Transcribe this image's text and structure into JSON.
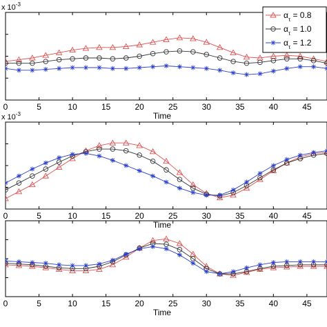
{
  "chart_data": [
    {
      "type": "line",
      "title": "",
      "xlabel": "Time",
      "ylabel": "",
      "y_exponent": "x 10",
      "y_exponent_power": "-3",
      "xlim": [
        0,
        48
      ],
      "ylim": [
        0,
        1
      ],
      "xticks": [
        0,
        5,
        10,
        15,
        20,
        25,
        30,
        35,
        40,
        45
      ],
      "grid": false,
      "legend": "top-right",
      "series": [
        {
          "name": "α = 0.8",
          "name_subscript": "τ",
          "color": "#e05050",
          "marker": "triangle",
          "x": [
            0,
            2,
            4,
            6,
            8,
            10,
            12,
            14,
            16,
            18,
            20,
            22,
            24,
            26,
            28,
            30,
            32,
            34,
            36,
            38,
            40,
            42,
            44,
            46,
            48
          ],
          "y": [
            0.44,
            0.46,
            0.48,
            0.51,
            0.54,
            0.57,
            0.59,
            0.6,
            0.6,
            0.61,
            0.63,
            0.66,
            0.69,
            0.71,
            0.7,
            0.66,
            0.6,
            0.54,
            0.49,
            0.48,
            0.5,
            0.51,
            0.5,
            0.47,
            0.44
          ]
        },
        {
          "name": "α = 1.0",
          "name_subscript": "τ",
          "color": "#333333",
          "marker": "circle",
          "x": [
            0,
            2,
            4,
            6,
            8,
            10,
            12,
            14,
            16,
            18,
            20,
            22,
            24,
            26,
            28,
            30,
            32,
            34,
            36,
            38,
            40,
            42,
            44,
            46,
            48
          ],
          "y": [
            0.42,
            0.42,
            0.42,
            0.44,
            0.46,
            0.47,
            0.48,
            0.48,
            0.47,
            0.48,
            0.5,
            0.53,
            0.55,
            0.56,
            0.55,
            0.52,
            0.48,
            0.44,
            0.42,
            0.43,
            0.45,
            0.47,
            0.47,
            0.45,
            0.42
          ]
        },
        {
          "name": "α = 1.2",
          "name_subscript": "τ",
          "color": "#2a3fcf",
          "marker": "star",
          "x": [
            0,
            2,
            4,
            6,
            8,
            10,
            12,
            14,
            16,
            18,
            20,
            22,
            24,
            26,
            28,
            30,
            32,
            34,
            36,
            38,
            40,
            42,
            44,
            46,
            48
          ],
          "y": [
            0.36,
            0.34,
            0.34,
            0.35,
            0.36,
            0.37,
            0.37,
            0.37,
            0.36,
            0.36,
            0.37,
            0.38,
            0.39,
            0.38,
            0.37,
            0.36,
            0.34,
            0.31,
            0.29,
            0.3,
            0.33,
            0.36,
            0.38,
            0.38,
            0.36
          ]
        }
      ]
    },
    {
      "type": "line",
      "title": "",
      "xlabel": "Time",
      "ylabel": "",
      "y_exponent": "x 10",
      "y_exponent_power": "-3",
      "xlim": [
        0,
        48
      ],
      "ylim": [
        0,
        1
      ],
      "xticks": [
        0,
        5,
        10,
        15,
        20,
        25,
        30,
        35,
        40,
        45
      ],
      "grid": false,
      "legend": "none",
      "series": [
        {
          "name": "α = 0.8",
          "color": "#e05050",
          "marker": "triangle",
          "x": [
            0,
            2,
            4,
            6,
            8,
            10,
            12,
            14,
            16,
            18,
            20,
            22,
            24,
            26,
            28,
            30,
            32,
            34,
            36,
            38,
            40,
            42,
            44,
            46,
            48
          ],
          "y": [
            0.12,
            0.2,
            0.28,
            0.38,
            0.48,
            0.58,
            0.67,
            0.73,
            0.76,
            0.76,
            0.73,
            0.66,
            0.55,
            0.42,
            0.28,
            0.18,
            0.13,
            0.16,
            0.24,
            0.34,
            0.44,
            0.53,
            0.6,
            0.64,
            0.65
          ]
        },
        {
          "name": "α = 1.0",
          "color": "#333333",
          "marker": "circle",
          "x": [
            0,
            2,
            4,
            6,
            8,
            10,
            12,
            14,
            16,
            18,
            20,
            22,
            24,
            26,
            28,
            30,
            32,
            34,
            36,
            38,
            40,
            42,
            44,
            46,
            48
          ],
          "y": [
            0.22,
            0.3,
            0.38,
            0.46,
            0.54,
            0.61,
            0.66,
            0.69,
            0.69,
            0.67,
            0.62,
            0.55,
            0.45,
            0.34,
            0.24,
            0.17,
            0.15,
            0.19,
            0.27,
            0.36,
            0.45,
            0.53,
            0.58,
            0.62,
            0.64
          ]
        },
        {
          "name": "α = 1.2",
          "color": "#2a3fcf",
          "marker": "star",
          "x": [
            0,
            2,
            4,
            6,
            8,
            10,
            12,
            14,
            16,
            18,
            20,
            22,
            24,
            26,
            28,
            30,
            32,
            34,
            36,
            38,
            40,
            42,
            44,
            46,
            48
          ],
          "y": [
            0.3,
            0.38,
            0.46,
            0.53,
            0.59,
            0.63,
            0.64,
            0.61,
            0.56,
            0.5,
            0.44,
            0.38,
            0.31,
            0.24,
            0.19,
            0.16,
            0.16,
            0.22,
            0.31,
            0.41,
            0.5,
            0.57,
            0.62,
            0.65,
            0.67
          ]
        }
      ]
    },
    {
      "type": "line",
      "title": "",
      "xlabel": "Time",
      "ylabel": "",
      "xlim": [
        0,
        48
      ],
      "ylim": [
        0,
        1
      ],
      "xticks": [
        0,
        5,
        10,
        15,
        20,
        25,
        30,
        35,
        40,
        45
      ],
      "grid": false,
      "legend": "none",
      "series": [
        {
          "name": "α = 0.8",
          "color": "#e05050",
          "marker": "triangle",
          "x": [
            0,
            2,
            4,
            6,
            8,
            10,
            12,
            14,
            16,
            18,
            20,
            22,
            24,
            26,
            28,
            30,
            32,
            34,
            36,
            38,
            40,
            42,
            44,
            46,
            48
          ],
          "y": [
            0.42,
            0.41,
            0.4,
            0.38,
            0.36,
            0.34,
            0.34,
            0.36,
            0.42,
            0.52,
            0.64,
            0.74,
            0.76,
            0.7,
            0.56,
            0.4,
            0.3,
            0.28,
            0.32,
            0.36,
            0.38,
            0.39,
            0.4,
            0.4,
            0.4
          ]
        },
        {
          "name": "α = 1.0",
          "color": "#333333",
          "marker": "circle",
          "x": [
            0,
            2,
            4,
            6,
            8,
            10,
            12,
            14,
            16,
            18,
            20,
            22,
            24,
            26,
            28,
            30,
            32,
            34,
            36,
            38,
            40,
            42,
            44,
            46,
            48
          ],
          "y": [
            0.44,
            0.43,
            0.42,
            0.4,
            0.38,
            0.37,
            0.37,
            0.4,
            0.46,
            0.55,
            0.64,
            0.7,
            0.69,
            0.62,
            0.5,
            0.37,
            0.3,
            0.3,
            0.33,
            0.37,
            0.4,
            0.41,
            0.42,
            0.42,
            0.42
          ]
        },
        {
          "name": "α = 1.2",
          "color": "#2a3fcf",
          "marker": "star",
          "x": [
            0,
            2,
            4,
            6,
            8,
            10,
            12,
            14,
            16,
            18,
            20,
            22,
            24,
            26,
            28,
            30,
            32,
            34,
            36,
            38,
            40,
            42,
            44,
            46,
            48
          ],
          "y": [
            0.47,
            0.46,
            0.45,
            0.44,
            0.42,
            0.41,
            0.41,
            0.43,
            0.48,
            0.56,
            0.63,
            0.66,
            0.63,
            0.55,
            0.44,
            0.33,
            0.3,
            0.33,
            0.38,
            0.42,
            0.45,
            0.46,
            0.46,
            0.46,
            0.46
          ]
        }
      ]
    }
  ]
}
